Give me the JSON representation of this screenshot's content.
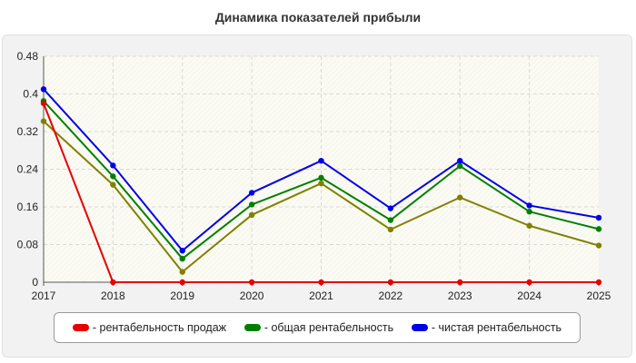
{
  "title": "Динамика показателей прибыли",
  "chart_data": {
    "type": "line",
    "title": "Динамика показателей прибыли",
    "xlabel": "",
    "ylabel": "",
    "categories": [
      "2017",
      "2018",
      "2019",
      "2020",
      "2021",
      "2022",
      "2023",
      "2024",
      "2025"
    ],
    "ylim": [
      0,
      0.48
    ],
    "yticks": [
      "0",
      "0.08",
      "0.16",
      "0.24",
      "0.32",
      "0.4",
      "0.48"
    ],
    "grid": true,
    "legend_position": "bottom",
    "series": [
      {
        "name": "- рентабельность продаж",
        "color": "#e60000",
        "values": [
          0.38,
          0,
          0,
          0,
          0,
          0,
          0,
          0,
          0
        ]
      },
      {
        "name": "- общая рентабельность",
        "color": "#008000",
        "values": [
          0.385,
          0.225,
          0.05,
          0.165,
          0.222,
          0.132,
          0.247,
          0.15,
          0.113
        ]
      },
      {
        "name": "- чистая рентабельность",
        "color": "#0000e6",
        "values": [
          0.41,
          0.248,
          0.067,
          0.19,
          0.258,
          0.157,
          0.258,
          0.163,
          0.137
        ]
      },
      {
        "name": "",
        "color": "#808000",
        "values": [
          0.342,
          0.207,
          0.022,
          0.143,
          0.21,
          0.112,
          0.18,
          0.12,
          0.078
        ]
      }
    ]
  }
}
